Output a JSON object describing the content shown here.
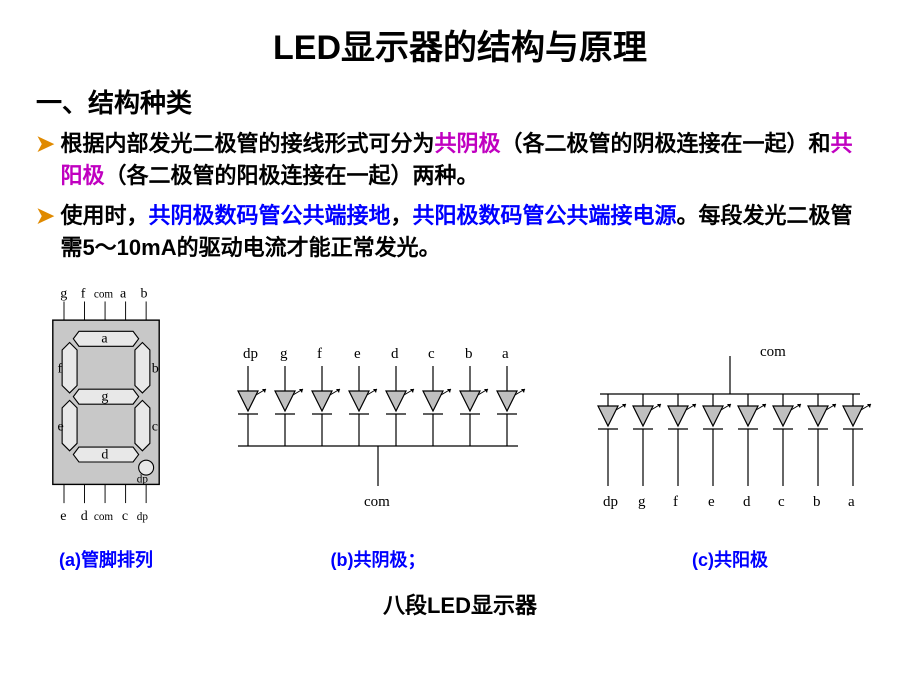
{
  "title": "LED显示器的结构与原理",
  "section_heading": "一、结构种类",
  "bullets": [
    {
      "arrow": "➤",
      "parts": [
        {
          "t": "根据内部发光二极管的接线形式可分为",
          "c": "c-black"
        },
        {
          "t": "共阴极",
          "c": "c-purple"
        },
        {
          "t": "（各二极管的阴极连接在一起）和",
          "c": "c-black"
        },
        {
          "t": "共阳极",
          "c": "c-purple"
        },
        {
          "t": "（各二极管的阳极连接在一起）两种。",
          "c": "c-black"
        }
      ]
    },
    {
      "arrow": "➤",
      "parts": [
        {
          "t": "使用时，",
          "c": "c-black"
        },
        {
          "t": "共阴极数码管公共端接地",
          "c": "c-blue"
        },
        {
          "t": "，",
          "c": "c-black"
        },
        {
          "t": "共阳极数码管公共端接电源",
          "c": "c-blue"
        },
        {
          "t": "。每段发光二极管需5～10mA的驱动电流才能正常发光。",
          "c": "c-black"
        }
      ]
    }
  ],
  "diagrams": {
    "a": {
      "top_pins": [
        "g",
        "f",
        "com",
        "a",
        "b"
      ],
      "bottom_pins": [
        "e",
        "d",
        "com",
        "c",
        "dp"
      ],
      "segments": {
        "a": "a",
        "b": "b",
        "c": "c",
        "d": "d",
        "e": "e",
        "f": "f",
        "g": "g",
        "dp": "dp"
      },
      "bg": "#c8c8c8",
      "seg_color": "#e8e8e8",
      "outline": "#000000",
      "caption": "(a)管脚排列"
    },
    "b": {
      "pins": [
        "dp",
        "g",
        "f",
        "e",
        "d",
        "c",
        "b",
        "a"
      ],
      "com": "com",
      "caption": "(b)共阴极；"
    },
    "c": {
      "pins": [
        "dp",
        "g",
        "f",
        "e",
        "d",
        "c",
        "b",
        "a"
      ],
      "com": "com",
      "caption": "(c)共阳极"
    },
    "diode_fill": "#c0c0c0",
    "stroke": "#000000"
  },
  "bottom_label": "八段LED显示器"
}
